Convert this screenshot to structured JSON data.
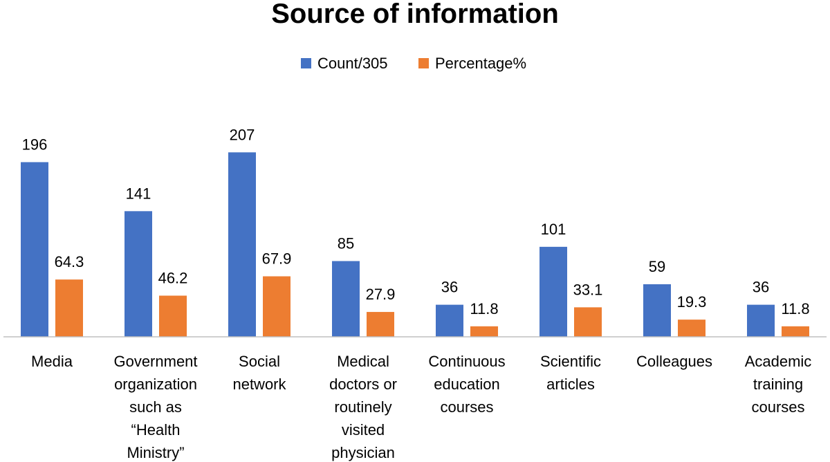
{
  "chart_data": {
    "type": "bar",
    "title": "Source of information",
    "legend_position": "top",
    "grid": false,
    "ylim": [
      0,
      220
    ],
    "categories": [
      [
        "Media"
      ],
      [
        "Government",
        "organization",
        "such as",
        "“Health",
        "Ministry”"
      ],
      [
        "Social",
        "network"
      ],
      [
        "Medical",
        "doctors or",
        "routinely",
        "visited",
        "physician"
      ],
      [
        "Continuous",
        "education",
        "courses"
      ],
      [
        "Scientific",
        "articles"
      ],
      [
        "Colleagues"
      ],
      [
        "Academic",
        "training",
        "courses"
      ]
    ],
    "series": [
      {
        "name": "Count/305",
        "color": "#4472C4",
        "values": [
          196,
          141,
          207,
          85,
          36,
          101,
          59,
          36
        ],
        "labels": [
          "196",
          "141",
          "207",
          "85",
          "36",
          "101",
          "59",
          "36"
        ]
      },
      {
        "name": "Percentage%",
        "color": "#ED7D31",
        "values": [
          64.3,
          46.2,
          67.9,
          27.9,
          11.8,
          33.1,
          19.3,
          11.8
        ],
        "labels": [
          "64.3",
          "46.2",
          "67.9",
          "27.9",
          "11.8",
          "33.1",
          "19.3",
          "11.8"
        ]
      }
    ]
  }
}
